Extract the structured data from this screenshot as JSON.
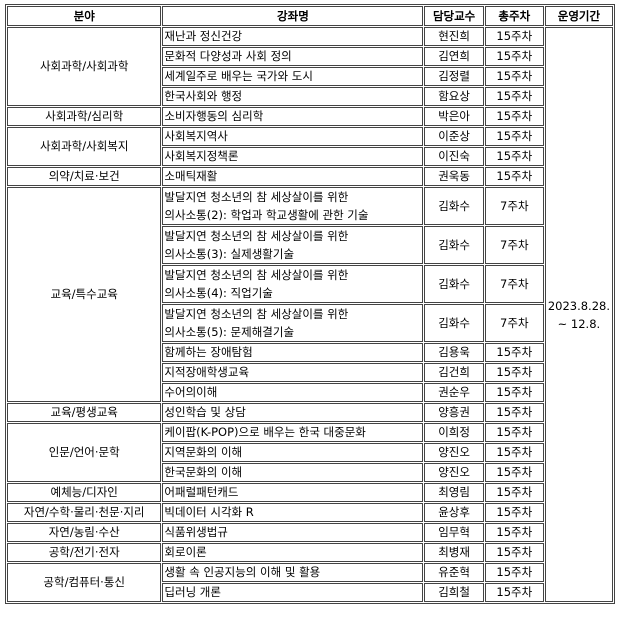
{
  "headers": [
    "분야",
    "강좌명",
    "담당교수",
    "총주차",
    "운영기간"
  ],
  "period": [
    "2023.8.28.",
    "~ 12.8."
  ],
  "groups": [
    {
      "field": "사회과학/사회과학",
      "courses": [
        {
          "name": [
            "재난과 정신건강"
          ],
          "prof": "현진희",
          "weeks": "15주차"
        },
        {
          "name": [
            "문화적 다양성과 사회 정의"
          ],
          "prof": "김연희",
          "weeks": "15주차"
        },
        {
          "name": [
            "세계일주로 배우는 국가와 도시"
          ],
          "prof": "김정렬",
          "weeks": "15주차"
        },
        {
          "name": [
            "한국사회와 행정"
          ],
          "prof": "함요상",
          "weeks": "15주차"
        }
      ]
    },
    {
      "field": "사회과학/심리학",
      "courses": [
        {
          "name": [
            "소비자행동의 심리학"
          ],
          "prof": "박은아",
          "weeks": "15주차"
        }
      ]
    },
    {
      "field": "사회과학/사회복지",
      "courses": [
        {
          "name": [
            "사회복지역사"
          ],
          "prof": "이준상",
          "weeks": "15주차"
        },
        {
          "name": [
            "사회복지정책론"
          ],
          "prof": "이진숙",
          "weeks": "15주차"
        }
      ]
    },
    {
      "field": "의약/치료·보건",
      "courses": [
        {
          "name": [
            "소매틱재활"
          ],
          "prof": "권욱동",
          "weeks": "15주차"
        }
      ]
    },
    {
      "field": "교육/특수교육",
      "courses": [
        {
          "name": [
            "발달지연 청소년의 참 세상살이를 위한",
            "의사소통(2): 학업과 학교생활에 관한 기술"
          ],
          "prof": "김화수",
          "weeks": "7주차"
        },
        {
          "name": [
            "발달지연 청소년의 참 세상살이를 위한",
            "의사소통(3): 실제생활기술"
          ],
          "prof": "김화수",
          "weeks": "7주차"
        },
        {
          "name": [
            "발달지연 청소년의 참 세상살이를 위한",
            "의사소통(4): 직업기술"
          ],
          "prof": "김화수",
          "weeks": "7주차"
        },
        {
          "name": [
            "발달지연 청소년의 참 세상살이를 위한",
            "의사소통(5): 문제해결기술"
          ],
          "prof": "김화수",
          "weeks": "7주차"
        },
        {
          "name": [
            "함께하는 장애탐험"
          ],
          "prof": "김용욱",
          "weeks": "15주차"
        },
        {
          "name": [
            "지적장애학생교육"
          ],
          "prof": "김건희",
          "weeks": "15주차"
        },
        {
          "name": [
            "수어의이해"
          ],
          "prof": "권순우",
          "weeks": "15주차"
        }
      ]
    },
    {
      "field": "교육/평생교육",
      "courses": [
        {
          "name": [
            "성인학습 및 상담"
          ],
          "prof": "양흥권",
          "weeks": "15주차"
        }
      ]
    },
    {
      "field": "인문/언어·문학",
      "courses": [
        {
          "name": [
            "케이팝(K-POP)으로 배우는 한국 대중문화"
          ],
          "prof": "이희정",
          "weeks": "15주차"
        },
        {
          "name": [
            "지역문화의 이해"
          ],
          "prof": "양진오",
          "weeks": "15주차"
        },
        {
          "name": [
            "한국문화의 이해"
          ],
          "prof": "양진오",
          "weeks": "15주차"
        }
      ]
    },
    {
      "field": "예체능/디자인",
      "courses": [
        {
          "name": [
            "어패럴패턴캐드"
          ],
          "prof": "최영림",
          "weeks": "15주차"
        }
      ]
    },
    {
      "field": "자연/수학·물리·천문·지리",
      "courses": [
        {
          "name": [
            "빅데이터 시각화 R"
          ],
          "prof": "윤상후",
          "weeks": "15주차"
        }
      ]
    },
    {
      "field": "자연/농림·수산",
      "courses": [
        {
          "name": [
            "식품위생법규"
          ],
          "prof": "임무혁",
          "weeks": "15주차"
        }
      ]
    },
    {
      "field": "공학/전기·전자",
      "courses": [
        {
          "name": [
            "회로이론"
          ],
          "prof": "최병재",
          "weeks": "15주차"
        }
      ]
    },
    {
      "field": "공학/컴퓨터·통신",
      "courses": [
        {
          "name": [
            "생활 속 인공지능의 이해 및 활용"
          ],
          "prof": "유준혁",
          "weeks": "15주차"
        },
        {
          "name": [
            "딥러닝 개론"
          ],
          "prof": "김희철",
          "weeks": "15주차"
        }
      ]
    }
  ]
}
